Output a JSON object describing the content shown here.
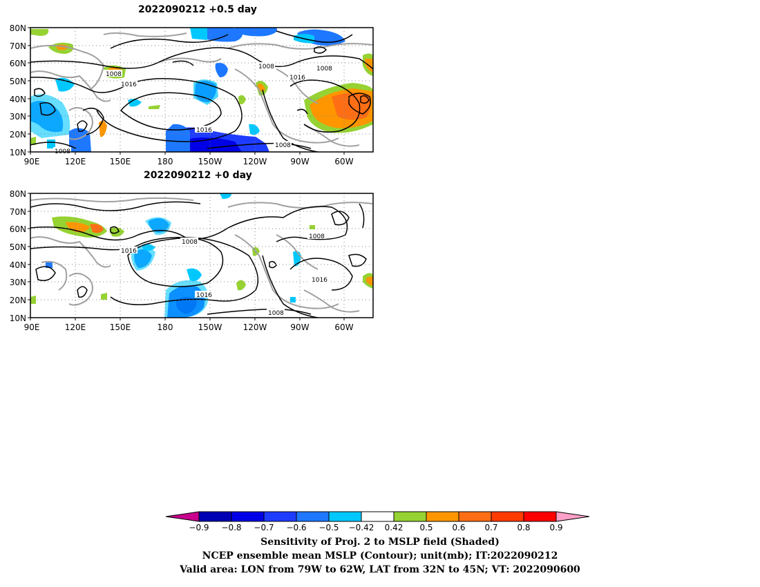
{
  "panels": [
    {
      "title": "2022090212 +0.5 day",
      "lat_labels": [
        "80N",
        "70N",
        "60N",
        "50N",
        "40N",
        "30N",
        "20N",
        "10N"
      ],
      "lon_labels": [
        "90E",
        "120E",
        "150E",
        "180",
        "150W",
        "120W",
        "90W",
        "60W"
      ],
      "contour_labels": [
        "1008",
        "1016",
        "1008",
        "1016",
        "1008",
        "1016",
        "1008",
        "1008"
      ]
    },
    {
      "title": "2022090212 +0 day",
      "lat_labels": [
        "80N",
        "70N",
        "60N",
        "50N",
        "40N",
        "30N",
        "20N",
        "10N"
      ],
      "lon_labels": [
        "90E",
        "120E",
        "150E",
        "180",
        "150W",
        "120W",
        "90W",
        "60W"
      ],
      "contour_labels": [
        "1008",
        "1016",
        "1008",
        "1016",
        "1016",
        "1008"
      ]
    }
  ],
  "colorbar": {
    "tick_labels": [
      "-0.9",
      "-0.8",
      "-0.7",
      "-0.6",
      "-0.5",
      "-0.42",
      "0.42",
      "0.5",
      "0.6",
      "0.7",
      "0.8",
      "0.9"
    ],
    "colors": [
      "#c8008c",
      "#0000b4",
      "#0000e6",
      "#1e3cff",
      "#1e78ff",
      "#00c8ff",
      "#ffffff",
      "#96d232",
      "#ff9600",
      "#ff6e14",
      "#ff3c00",
      "#ff0000",
      "#ffa0c8"
    ]
  },
  "caption": {
    "line1": "Sensitivity of Proj. 2 to MSLP field (Shaded)",
    "line2": "NCEP ensemble mean MSLP (Contour); unit(mb); IT:2022090212",
    "line3": "Valid area: LON from 79W to 62W, LAT from 32N to 45N; VT: 2022090600"
  }
}
